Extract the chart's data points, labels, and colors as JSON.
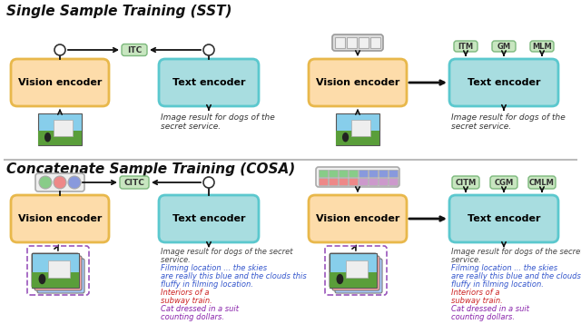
{
  "title_sst": "Single Sample Training (SST)",
  "title_cosa": "Concatenate Sample Training (COSA)",
  "vision_encoder_text": "Vision encoder",
  "text_encoder_text": "Text encoder",
  "vision_color": "#FDDCAA",
  "text_color": "#A8DDE0",
  "vision_edge": "#E8B84B",
  "text_edge": "#5BC8CE",
  "itc_color": "#C8E6C0",
  "itc_edge": "#7CB87C",
  "bg_color": "#FFFFFF",
  "separator_color": "#BBBBBB",
  "arrow_color": "#111111",
  "caption_sst_line1": "Image result for dogs of the",
  "caption_sst_line2": "secret service.",
  "caption_cosa_seg1": "Image result for dogs of the secret\nservice. ",
  "caption_cosa_seg2": "Filming location ... the skies\nare really this blue and the clouds this\nfluffy in filming location. ",
  "caption_cosa_seg3": "Interiors of a\nsubway train. ",
  "caption_cosa_seg4": "Cat dressed in a suit\ncounting dollars.",
  "color_seg1": "#444444",
  "color_seg2": "#3355CC",
  "color_seg3": "#CC2222",
  "color_seg4": "#8822AA",
  "token_single_color": "#E0E0E0",
  "token_single_edge": "#888888",
  "cosa_token_colors_row1": [
    "#88CC88",
    "#88CC88",
    "#88CC88",
    "#88CC88",
    "#8899DD",
    "#8899DD",
    "#8899DD",
    "#8899DD"
  ],
  "cosa_token_colors_row2": [
    "#EE8888",
    "#EE8888",
    "#EE8888",
    "#EE8888",
    "#CC99CC",
    "#CC99CC",
    "#CC99CC",
    "#CC99CC"
  ],
  "circle_color_green": "#88CC88",
  "circle_color_red": "#EE8888",
  "circle_color_blue": "#8899DD"
}
